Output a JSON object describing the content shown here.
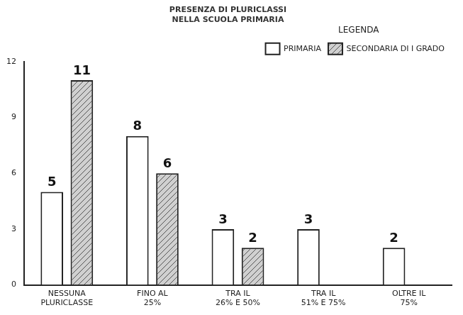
{
  "chart_data": {
    "type": "bar",
    "title": "PRESENZA DI PLURICLASSI NELLA SCUOLA PRIMARIA",
    "legend_title": "LEGENDA",
    "categories": [
      "NESSUNA PLURICLASSE",
      "FINO AL 25%",
      "TRA IL 26% E 50%",
      "TRA IL 51% E 75%",
      "OLTRE IL 75%"
    ],
    "series": [
      {
        "name": "PRIMARIA",
        "color": "#ffffff",
        "values": [
          5,
          8,
          3,
          3,
          2
        ]
      },
      {
        "name": "SECONDARIA DI I GRADO",
        "color": "#d0d0d0",
        "values": [
          11,
          6,
          2,
          null,
          null
        ]
      }
    ],
    "ylim": [
      0,
      12
    ],
    "yticks": [
      0,
      3,
      6,
      9,
      12
    ],
    "grid": false,
    "legend": "top-right",
    "data_labels": true
  }
}
